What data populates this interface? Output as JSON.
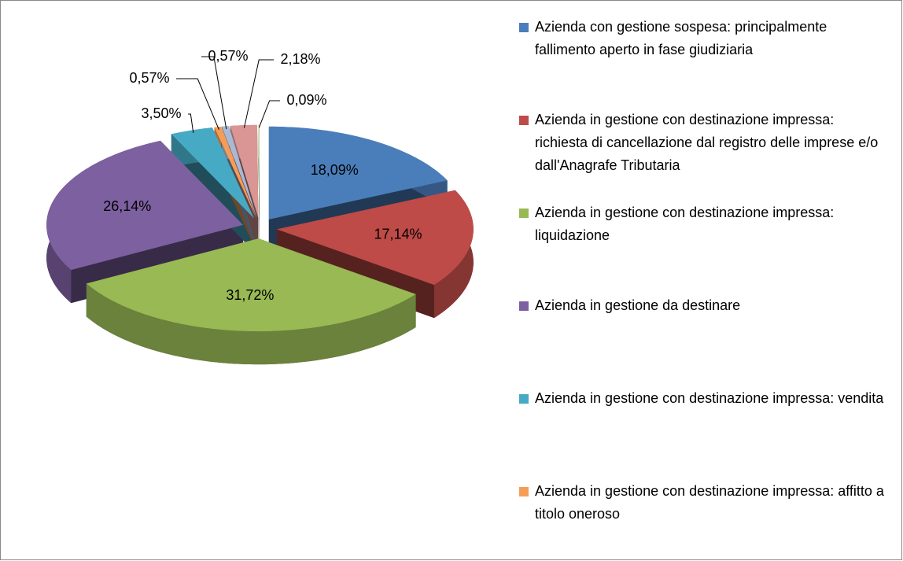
{
  "chart_data": {
    "type": "pie",
    "categories": [
      "Azienda  con gestione sospesa: principalmente fallimento aperto in fase giudiziaria",
      "Azienda in gestione con destinazione impressa: richiesta di cancellazione dal registro delle imprese e/o dall'Anagrafe Tributaria",
      "Azienda in gestione con destinazione impressa: liquidazione",
      "Azienda in gestione da destinare",
      "Azienda in gestione con destinazione impressa: vendita",
      "Azienda in gestione con destinazione impressa: affitto a titolo oneroso",
      null,
      null,
      null
    ],
    "values": [
      18.09,
      17.14,
      31.72,
      26.14,
      3.5,
      0.57,
      0.57,
      2.18,
      0.09
    ],
    "value_labels": [
      "18,09%",
      "17,14%",
      "31,72%",
      "26,14%",
      "3,50%",
      "0,57%",
      "0,57%",
      "2,18%",
      "0,09%"
    ],
    "colors": [
      "#4a7ebb",
      "#be4b48",
      "#98b954",
      "#7d60a0",
      "#46aac5",
      "#f59d56",
      "#a9b9d6",
      "#d99694",
      "#c3d69b"
    ]
  }
}
